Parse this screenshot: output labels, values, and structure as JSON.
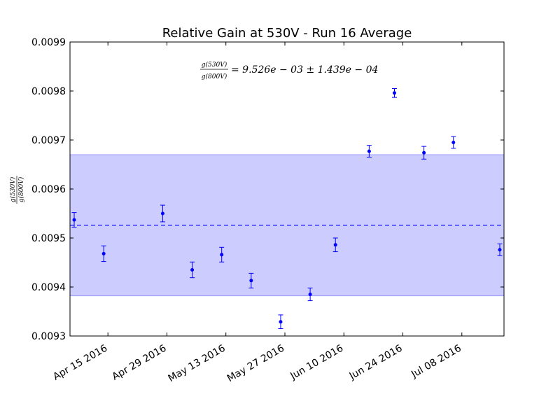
{
  "chart_data": {
    "type": "scatter",
    "title": "Relative Gain at 530V - Run 16 Average",
    "ylabel": {
      "numerator": "g(530V)",
      "denominator": "g(800V)"
    },
    "annotation": {
      "numerator": "g(530V)",
      "denominator": "g(800V)",
      "expression": "= 9.526e − 03 ± 1.439e − 04"
    },
    "ylim": [
      0.0093,
      0.0099
    ],
    "yticks": [
      "0.0093",
      "0.0094",
      "0.0095",
      "0.0096",
      "0.0097",
      "0.0098",
      "0.0099"
    ],
    "xlim": [
      "2016-04-06",
      "2016-07-18"
    ],
    "xtick_dates": [
      "2016-04-15",
      "2016-04-29",
      "2016-05-13",
      "2016-05-27",
      "2016-06-10",
      "2016-06-24",
      "2016-07-08"
    ],
    "xtick_labels": [
      "Apr 15 2016",
      "Apr 29 2016",
      "May 13 2016",
      "May 27 2016",
      "Jun 10 2016",
      "Jun 24 2016",
      "Jul 08 2016"
    ],
    "mean": 0.009526,
    "band": [
      0.009382,
      0.00967
    ],
    "points": [
      {
        "x": "2016-04-07",
        "y": 0.009537,
        "err": 1.5e-05
      },
      {
        "x": "2016-04-14",
        "y": 0.009468,
        "err": 1.6e-05
      },
      {
        "x": "2016-04-28",
        "y": 0.00955,
        "err": 1.7e-05
      },
      {
        "x": "2016-05-05",
        "y": 0.009435,
        "err": 1.6e-05
      },
      {
        "x": "2016-05-12",
        "y": 0.009466,
        "err": 1.5e-05
      },
      {
        "x": "2016-05-19",
        "y": 0.009413,
        "err": 1.5e-05
      },
      {
        "x": "2016-05-26",
        "y": 0.009329,
        "err": 1.4e-05
      },
      {
        "x": "2016-06-02",
        "y": 0.009385,
        "err": 1.3e-05
      },
      {
        "x": "2016-06-08",
        "y": 0.009486,
        "err": 1.4e-05
      },
      {
        "x": "2016-06-16",
        "y": 0.009677,
        "err": 1.2e-05
      },
      {
        "x": "2016-06-22",
        "y": 0.009796,
        "err": 9e-06
      },
      {
        "x": "2016-06-29",
        "y": 0.009674,
        "err": 1.3e-05
      },
      {
        "x": "2016-07-06",
        "y": 0.009695,
        "err": 1.2e-05
      },
      {
        "x": "2016-07-17",
        "y": 0.009476,
        "err": 1.2e-05
      }
    ],
    "colors": {
      "points": "#0000ff",
      "band": "#ccccff",
      "band_edge": "#9999ff",
      "mean_line": "#0000ff",
      "axes": "#000000"
    }
  }
}
